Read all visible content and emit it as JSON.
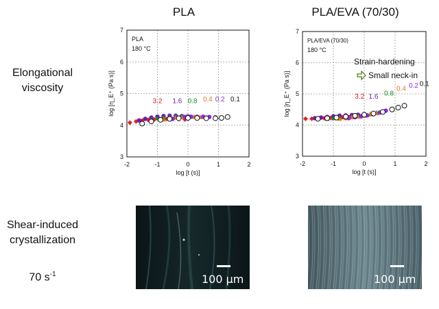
{
  "columns": {
    "left": "PLA",
    "right": "PLA/EVA (70/30)"
  },
  "rows": {
    "elongational_line1": "Elongational",
    "elongational_line2": "viscosity",
    "shear_line1": "Shear-induced",
    "shear_line2": "crystallization",
    "shear_rate_base": "70 s",
    "shear_rate_exp": "-1"
  },
  "micrographs": {
    "scale_label": "100 μm"
  },
  "chart_data": [
    {
      "type": "scatter",
      "xlabel": "log [t (s)]",
      "ylabel": "log [η_E⁺ (Pa s)]",
      "xlim": [
        -2,
        2
      ],
      "ylim": [
        3,
        7
      ],
      "grid": true,
      "x_ticks": [
        -2,
        -1,
        0,
        1,
        2
      ],
      "y_ticks": [
        3,
        4,
        5,
        6,
        7
      ],
      "annotations": [
        "PLA",
        "180 °C"
      ],
      "series": [
        {
          "name": "3.2",
          "color": "#e02020",
          "marker": "diamond",
          "x": [
            -1.9,
            -1.7,
            -1.5,
            -1.3,
            -1.1,
            -0.9,
            -0.7,
            -0.5,
            -0.3,
            -0.1
          ],
          "y": [
            4.08,
            4.12,
            4.15,
            4.17,
            4.18,
            4.19,
            4.2,
            4.2,
            4.19,
            4.18
          ]
        },
        {
          "name": "1.6",
          "color": "#6a1fb0",
          "marker": "circle",
          "x": [
            -1.6,
            -1.4,
            -1.2,
            -1.0,
            -0.8,
            -0.6,
            -0.4,
            -0.2,
            0.0
          ],
          "y": [
            4.15,
            4.2,
            4.24,
            4.27,
            4.29,
            4.3,
            4.3,
            4.29,
            4.28
          ]
        },
        {
          "name": "0.8",
          "color": "#1a8a2a",
          "marker": "triangle",
          "x": [
            -1.2,
            -1.0,
            -0.8,
            -0.6,
            -0.4,
            -0.2,
            0.0,
            0.2,
            0.4
          ],
          "y": [
            4.18,
            4.22,
            4.25,
            4.27,
            4.28,
            4.29,
            4.28,
            4.27,
            4.26
          ]
        },
        {
          "name": "0.4",
          "color": "#e07820",
          "marker": "triangle",
          "x": [
            -0.8,
            -0.6,
            -0.4,
            -0.2,
            0.0,
            0.2,
            0.4,
            0.6
          ],
          "y": [
            4.18,
            4.22,
            4.24,
            4.26,
            4.27,
            4.27,
            4.26,
            4.25
          ]
        },
        {
          "name": "0.2",
          "color": "#8a2be2",
          "marker": "circle",
          "x": [
            -0.5,
            -0.3,
            -0.1,
            0.1,
            0.3,
            0.5,
            0.7,
            0.9
          ],
          "y": [
            4.2,
            4.24,
            4.26,
            4.27,
            4.27,
            4.27,
            4.26,
            4.25
          ]
        },
        {
          "name": "0.1",
          "color": "#111111",
          "marker": "open-circle",
          "x": [
            -1.5,
            -1.2,
            -0.9,
            -0.6,
            -0.3,
            0.0,
            0.3,
            0.6,
            0.9,
            1.1,
            1.3
          ],
          "y": [
            4.05,
            4.12,
            4.17,
            4.2,
            4.22,
            4.23,
            4.23,
            4.22,
            4.22,
            4.23,
            4.26
          ]
        }
      ]
    },
    {
      "type": "scatter",
      "xlabel": "log [t (s)]",
      "ylabel": "log [η_E⁺ (Pa s)]",
      "xlim": [
        -2,
        2
      ],
      "ylim": [
        3,
        7
      ],
      "grid": true,
      "x_ticks": [
        -2,
        -1,
        0,
        1,
        2
      ],
      "y_ticks": [
        3,
        4,
        5,
        6,
        7
      ],
      "annotations": [
        "PLA/EVA (70/30)",
        "180 °C",
        "Strain-hardening",
        "Small neck-in"
      ],
      "series": [
        {
          "name": "3.2",
          "color": "#e02020",
          "marker": "diamond",
          "x": [
            -1.9,
            -1.7,
            -1.5,
            -1.3,
            -1.1,
            -0.9,
            -0.7,
            -0.5,
            -0.3,
            -0.1
          ],
          "y": [
            4.2,
            4.2,
            4.21,
            4.22,
            4.23,
            4.24,
            4.25,
            4.26,
            4.27,
            4.28
          ]
        },
        {
          "name": "1.6",
          "color": "#6a1fb0",
          "marker": "circle",
          "x": [
            -1.6,
            -1.4,
            -1.2,
            -1.0,
            -0.8,
            -0.6,
            -0.4,
            -0.2,
            0.0
          ],
          "y": [
            4.22,
            4.24,
            4.26,
            4.28,
            4.3,
            4.31,
            4.32,
            4.33,
            4.35
          ]
        },
        {
          "name": "0.8",
          "color": "#1a8a2a",
          "marker": "triangle",
          "x": [
            -1.2,
            -1.0,
            -0.8,
            -0.6,
            -0.4,
            -0.2,
            0.0,
            0.2,
            0.4
          ],
          "y": [
            4.2,
            4.22,
            4.24,
            4.26,
            4.28,
            4.3,
            4.33,
            4.36,
            4.4
          ]
        },
        {
          "name": "0.4",
          "color": "#e07820",
          "marker": "triangle",
          "x": [
            -0.8,
            -0.6,
            -0.4,
            -0.2,
            0.0,
            0.2,
            0.4,
            0.6
          ],
          "y": [
            4.2,
            4.22,
            4.25,
            4.27,
            4.3,
            4.34,
            4.38,
            4.43
          ]
        },
        {
          "name": "0.2",
          "color": "#8a2be2",
          "marker": "circle",
          "x": [
            -0.5,
            -0.3,
            -0.1,
            0.1,
            0.3,
            0.5,
            0.7,
            0.9
          ],
          "y": [
            4.22,
            4.25,
            4.28,
            4.31,
            4.35,
            4.4,
            4.46,
            4.52
          ]
        },
        {
          "name": "0.1",
          "color": "#111111",
          "marker": "open-circle",
          "x": [
            -1.5,
            -1.2,
            -0.9,
            -0.6,
            -0.3,
            0.0,
            0.3,
            0.6,
            0.9,
            1.1,
            1.3
          ],
          "y": [
            4.2,
            4.22,
            4.24,
            4.27,
            4.3,
            4.33,
            4.37,
            4.42,
            4.5,
            4.56,
            4.62
          ]
        }
      ]
    }
  ]
}
